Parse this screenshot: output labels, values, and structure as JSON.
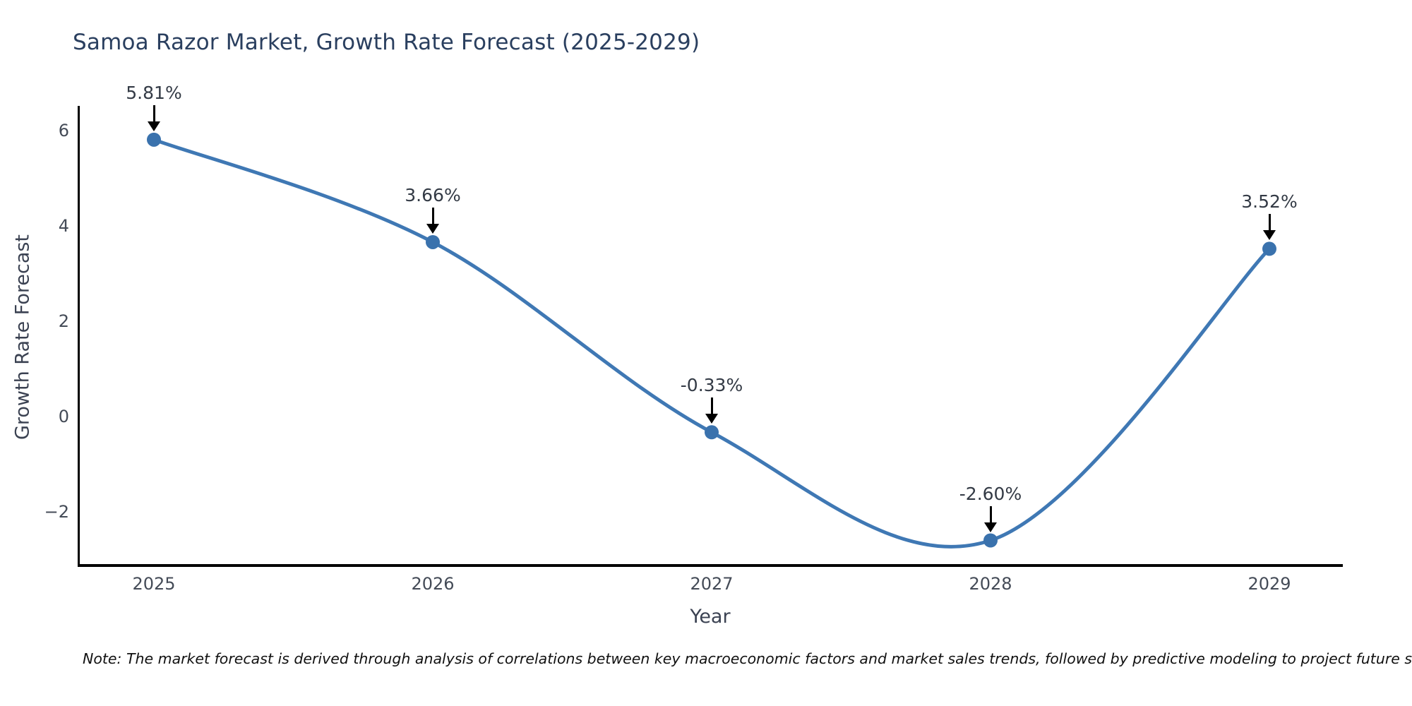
{
  "title": "Samoa Razor Market, Growth Rate Forecast (2025-2029)",
  "note": "Note: The market forecast is derived through analysis of correlations between key macroeconomic factors and market sales trends, followed by predictive modeling to project future sales",
  "chart_data": {
    "type": "line",
    "title": "Samoa Razor Market, Growth Rate Forecast (2025-2029)",
    "xlabel": "Year",
    "ylabel": "Growth Rate Forecast",
    "x": [
      2025,
      2026,
      2027,
      2028,
      2029
    ],
    "series": [
      {
        "name": "Growth Rate Forecast",
        "values": [
          5.81,
          3.66,
          -0.33,
          -2.6,
          3.52
        ]
      }
    ],
    "point_labels": [
      "5.81%",
      "3.66%",
      "-0.33%",
      "-2.60%",
      "3.52%"
    ],
    "x_tick_labels": [
      "2025",
      "2026",
      "2027",
      "2028",
      "2029"
    ],
    "y_ticks": [
      6,
      4,
      2,
      0,
      -2
    ],
    "y_tick_labels": [
      "6",
      "4",
      "2",
      "0",
      "−2"
    ],
    "ylim": [
      -3.1,
      6.6
    ],
    "grid": false,
    "line_shape": "spline",
    "legend": "none",
    "colors": {
      "line": "#3f78b4",
      "marker": "#3a72ad",
      "title": "#2a3f5f",
      "axis": "#000000",
      "tick": "#444b57",
      "annotation": "#333a45"
    }
  }
}
